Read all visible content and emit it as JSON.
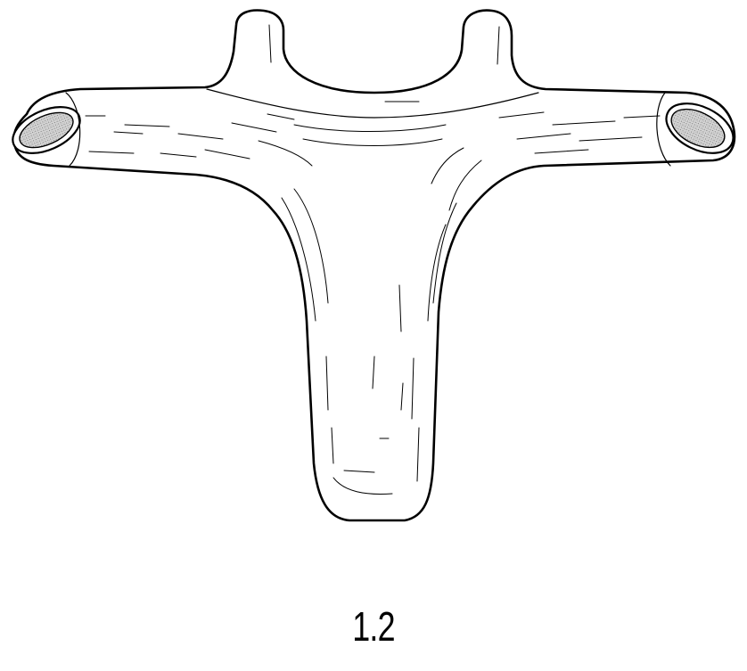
{
  "figure": {
    "label": "1.2"
  }
}
